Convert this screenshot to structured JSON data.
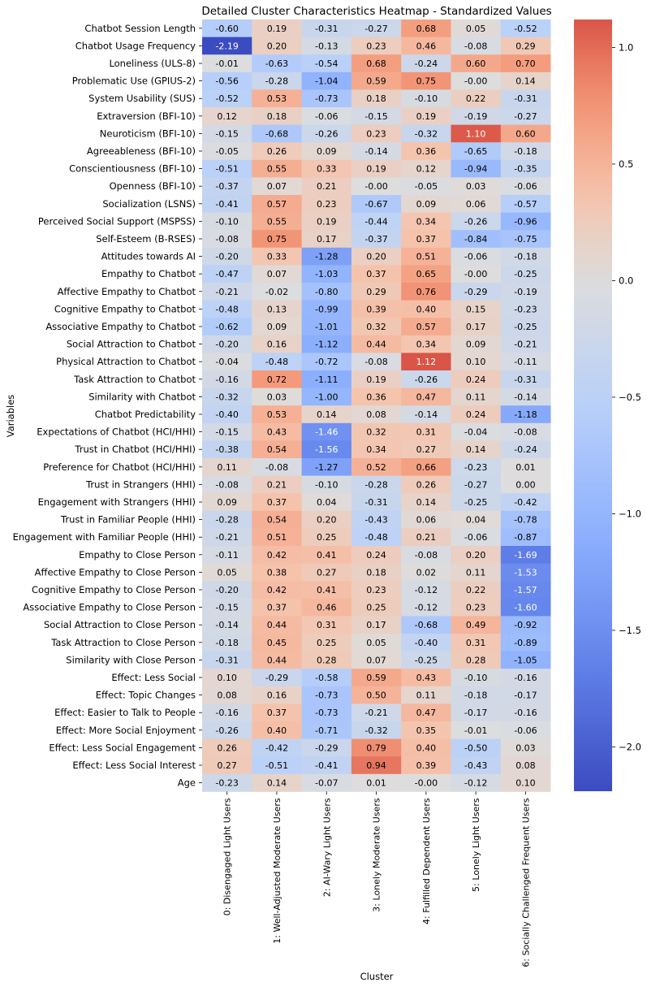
{
  "chart_data": {
    "type": "heatmap",
    "title": "Detailed Cluster Characteristics Heatmap - Standardized Values",
    "xlabel": "Cluster",
    "ylabel": "Variables",
    "rows": [
      "Chatbot Session Length",
      "Chatbot Usage Frequency",
      "Loneliness (ULS-8)",
      "Problematic Use (GPIUS-2)",
      "System Usability (SUS)",
      "Extraversion (BFI-10)",
      "Neuroticism (BFI-10)",
      "Agreeableness (BFI-10)",
      "Conscientiousness (BFI-10)",
      "Openness (BFI-10)",
      "Socialization (LSNS)",
      "Perceived Social Support (MSPSS)",
      "Self-Esteem (B-RSES)",
      "Attitudes towards AI",
      "Empathy to Chatbot",
      "Affective Empathy to Chatbot",
      "Cognitive Empathy to Chatbot",
      "Associative Empathy to Chatbot",
      "Social Attraction to Chatbot",
      "Physical Attraction to Chatbot",
      "Task Attraction to Chatbot",
      "Similarity with Chatbot",
      "Chatbot Predictability",
      "Expectations of Chatbot (HCI/HHI)",
      "Trust in Chatbot (HCI/HHI)",
      "Preference for Chatbot (HCI/HHI)",
      "Trust in Strangers (HHI)",
      "Engagement with Strangers (HHI)",
      "Trust in Familiar People (HHI)",
      "Engagement with Familiar People (HHI)",
      "Empathy to Close Person",
      "Affective Empathy to Close Person",
      "Cognitive Empathy to Close Person",
      "Associative Empathy to Close Person",
      "Social Attraction to Close Person",
      "Task Attraction to Close Person",
      "Similarity with Close Person",
      "Effect: Less Social",
      "Effect: Topic Changes",
      "Effect: Easier to Talk to People",
      "Effect: More Social Enjoyment",
      "Effect: Less Social Engagement",
      "Effect: Less Social Interest",
      "Age"
    ],
    "columns": [
      "0: Disengaged Light Users",
      "1: Well-Adjusted Moderate Users",
      "2: AI-Wary Light Users",
      "3: Lonely Moderate Users",
      "4: Fulfilled Dependent Users",
      "5: Lonely Light Users",
      "6: Socially Challenged Frequent Users"
    ],
    "values": [
      [
        -0.6,
        0.19,
        -0.31,
        -0.27,
        0.68,
        0.05,
        -0.52
      ],
      [
        -2.19,
        0.2,
        -0.13,
        0.23,
        0.46,
        -0.08,
        0.29
      ],
      [
        -0.01,
        -0.63,
        -0.54,
        0.68,
        -0.24,
        0.6,
        0.7
      ],
      [
        -0.56,
        -0.28,
        -1.04,
        0.59,
        0.75,
        -0.0,
        0.14
      ],
      [
        -0.52,
        0.53,
        -0.73,
        0.18,
        -0.1,
        0.22,
        -0.31
      ],
      [
        0.12,
        0.18,
        -0.06,
        -0.15,
        0.19,
        -0.19,
        -0.27
      ],
      [
        -0.15,
        -0.68,
        -0.26,
        0.23,
        -0.32,
        1.1,
        0.6
      ],
      [
        -0.05,
        0.26,
        0.09,
        -0.14,
        0.36,
        -0.65,
        -0.18
      ],
      [
        -0.51,
        0.55,
        0.33,
        0.19,
        0.12,
        -0.94,
        -0.35
      ],
      [
        -0.37,
        0.07,
        0.21,
        -0.0,
        -0.05,
        0.03,
        -0.06
      ],
      [
        -0.41,
        0.57,
        0.23,
        -0.67,
        0.09,
        0.06,
        -0.57
      ],
      [
        -0.1,
        0.55,
        0.19,
        -0.44,
        0.34,
        -0.26,
        -0.96
      ],
      [
        -0.08,
        0.75,
        0.17,
        -0.37,
        0.37,
        -0.84,
        -0.75
      ],
      [
        -0.2,
        0.33,
        -1.28,
        0.2,
        0.51,
        -0.06,
        -0.18
      ],
      [
        -0.47,
        0.07,
        -1.03,
        0.37,
        0.65,
        -0.0,
        -0.25
      ],
      [
        -0.21,
        -0.02,
        -0.8,
        0.29,
        0.76,
        -0.29,
        -0.19
      ],
      [
        -0.48,
        0.13,
        -0.99,
        0.39,
        0.4,
        0.15,
        -0.23
      ],
      [
        -0.62,
        0.09,
        -1.01,
        0.32,
        0.57,
        0.17,
        -0.25
      ],
      [
        -0.2,
        0.16,
        -1.12,
        0.44,
        0.34,
        0.09,
        -0.21
      ],
      [
        -0.04,
        -0.48,
        -0.72,
        -0.08,
        1.12,
        0.1,
        -0.11
      ],
      [
        -0.16,
        0.72,
        -1.11,
        0.19,
        -0.26,
        0.24,
        -0.31
      ],
      [
        -0.32,
        0.03,
        -1.0,
        0.36,
        0.47,
        0.11,
        -0.14
      ],
      [
        -0.4,
        0.53,
        0.14,
        0.08,
        -0.14,
        0.24,
        -1.18
      ],
      [
        -0.15,
        0.43,
        -1.46,
        0.32,
        0.31,
        -0.04,
        -0.08
      ],
      [
        -0.38,
        0.54,
        -1.56,
        0.34,
        0.27,
        0.14,
        -0.24
      ],
      [
        0.11,
        -0.08,
        -1.27,
        0.52,
        0.66,
        -0.23,
        0.01
      ],
      [
        -0.08,
        0.21,
        -0.1,
        -0.28,
        0.26,
        -0.27,
        0.0
      ],
      [
        0.09,
        0.37,
        0.04,
        -0.31,
        0.14,
        -0.25,
        -0.42
      ],
      [
        -0.28,
        0.54,
        0.2,
        -0.43,
        0.06,
        0.04,
        -0.78
      ],
      [
        -0.21,
        0.51,
        0.25,
        -0.48,
        0.21,
        -0.06,
        -0.87
      ],
      [
        -0.11,
        0.42,
        0.41,
        0.24,
        -0.08,
        0.2,
        -1.69
      ],
      [
        0.05,
        0.38,
        0.27,
        0.18,
        0.02,
        0.11,
        -1.53
      ],
      [
        -0.2,
        0.42,
        0.41,
        0.23,
        -0.12,
        0.22,
        -1.57
      ],
      [
        -0.15,
        0.37,
        0.46,
        0.25,
        -0.12,
        0.23,
        -1.6
      ],
      [
        -0.14,
        0.44,
        0.31,
        0.17,
        -0.68,
        0.49,
        -0.92
      ],
      [
        -0.18,
        0.45,
        0.25,
        0.05,
        -0.4,
        0.31,
        -0.89
      ],
      [
        -0.31,
        0.44,
        0.28,
        0.07,
        -0.25,
        0.28,
        -1.05
      ],
      [
        0.1,
        -0.29,
        -0.58,
        0.59,
        0.43,
        -0.1,
        -0.16
      ],
      [
        0.08,
        0.16,
        -0.73,
        0.5,
        0.11,
        -0.18,
        -0.17
      ],
      [
        -0.16,
        0.37,
        -0.73,
        -0.21,
        0.47,
        -0.17,
        -0.16
      ],
      [
        -0.26,
        0.4,
        -0.71,
        -0.32,
        0.35,
        -0.01,
        -0.06
      ],
      [
        0.26,
        -0.42,
        -0.29,
        0.79,
        0.4,
        -0.5,
        0.03
      ],
      [
        0.27,
        -0.51,
        -0.41,
        0.94,
        0.39,
        -0.43,
        0.08
      ],
      [
        -0.23,
        0.14,
        -0.07,
        0.01,
        -0.0,
        -0.12,
        0.1
      ]
    ],
    "value_format": "2 decimals",
    "colormap": "coolwarm",
    "vmin": -2.19,
    "vmax": 1.12,
    "colorbar_ticks": [
      1.0,
      0.5,
      0.0,
      -0.5,
      -1.0,
      -1.5,
      -2.0
    ],
    "colorbar_tick_labels": [
      "1.0",
      "0.5",
      "0.0",
      "−0.5",
      "−1.0",
      "−1.5",
      "−2.0"
    ],
    "legend_position": "right (colorbar)",
    "grid": false
  }
}
